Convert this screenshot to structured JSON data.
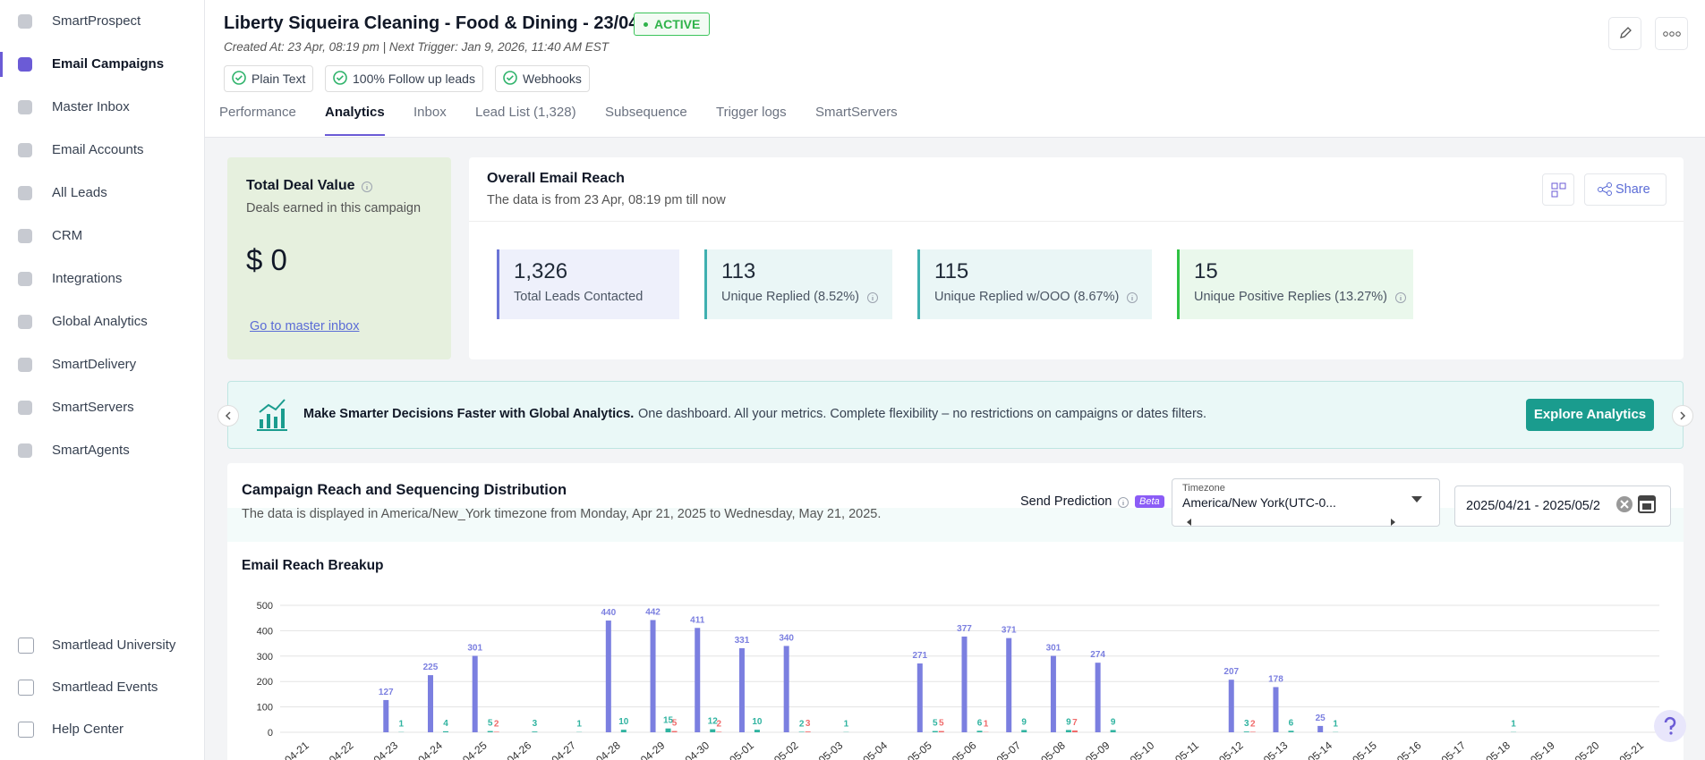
{
  "sidebar": {
    "items": [
      "SmartProspect",
      "Email Campaigns",
      "Master Inbox",
      "Email Accounts",
      "All Leads",
      "CRM",
      "Integrations",
      "Global Analytics",
      "SmartDelivery",
      "SmartServers",
      "SmartAgents"
    ],
    "active": 1,
    "bottom_items": [
      "Smartlead University",
      "Smartlead Events",
      "Help Center"
    ]
  },
  "header": {
    "title": "Liberty Siqueira Cleaning - Food & Dining - 23/04/...",
    "status": "ACTIVE",
    "meta": "Created At: 23 Apr, 08:19 pm | Next Trigger: Jan 9, 2026, 11:40 AM EST",
    "chips": [
      "Plain Text",
      "100% Follow up leads",
      "Webhooks"
    ],
    "tabs": [
      "Performance",
      "Analytics",
      "Inbox",
      "Lead List (1,328)",
      "Subsequence",
      "Trigger logs",
      "SmartServers"
    ],
    "active_tab": 1
  },
  "deal_card": {
    "title": "Total Deal Value",
    "subtitle": "Deals earned in this campaign",
    "value": "$ 0",
    "link": "Go to master inbox"
  },
  "reach_card": {
    "title": "Overall Email Reach",
    "subtitle": "The data is from 23 Apr, 08:19 pm till now",
    "share": "Share",
    "stats": [
      {
        "value": "1,326",
        "label": "Total Leads Contacted",
        "color": "#6b74d6",
        "bg": "#eef0fb"
      },
      {
        "value": "113",
        "label": "Unique Replied (8.52%)",
        "color": "#3fb0b0",
        "bg": "#eaf6f6"
      },
      {
        "value": "115",
        "label": "Unique Replied w/OOO (8.67%)",
        "color": "#3fb0b0",
        "bg": "#eaf6f6"
      },
      {
        "value": "15",
        "label": "Unique Positive Replies (13.27%)",
        "color": "#2fc244",
        "bg": "#eaf8ec"
      }
    ]
  },
  "banner": {
    "bold": "Make Smarter Decisions Faster with Global Analytics.",
    "text": "One dashboard. All your metrics. Complete flexibility – no restrictions on campaigns or dates filters.",
    "button": "Explore Analytics"
  },
  "distribution": {
    "title": "Campaign Reach and Sequencing Distribution",
    "subtitle": "The data is displayed in America/New_York timezone from Monday, Apr 21, 2025 to Wednesday, May 21, 2025.",
    "send_prediction": "Send Prediction",
    "beta": "Beta",
    "timezone_label": "Timezone",
    "timezone": "America/New York(UTC-0...",
    "date_range": "2025/04/21 - 2025/05/2"
  },
  "chart_data": {
    "type": "bar",
    "title": "Email Reach Breakup",
    "categories": [
      "04-21",
      "04-22",
      "04-23",
      "04-24",
      "04-25",
      "04-26",
      "04-27",
      "04-28",
      "04-29",
      "04-30",
      "05-01",
      "05-02",
      "05-03",
      "05-04",
      "05-05",
      "05-06",
      "05-07",
      "05-08",
      "05-09",
      "05-10",
      "05-11",
      "05-12",
      "05-13",
      "05-14",
      "05-15",
      "05-16",
      "05-17",
      "05-18",
      "05-19",
      "05-20",
      "05-21"
    ],
    "series": [
      {
        "color": "#7b7fe0",
        "values": [
          0,
          0,
          127,
          225,
          301,
          0,
          0,
          440,
          442,
          411,
          331,
          340,
          0,
          0,
          271,
          377,
          371,
          301,
          274,
          0,
          0,
          207,
          178,
          25,
          0,
          0,
          0,
          0,
          0,
          0,
          0
        ]
      },
      {
        "color": "#2fb3a0",
        "values": [
          0,
          0,
          1,
          4,
          5,
          3,
          1,
          10,
          15,
          12,
          10,
          2,
          1,
          0,
          5,
          6,
          9,
          9,
          9,
          0,
          0,
          3,
          6,
          1,
          0,
          0,
          0,
          1,
          0,
          0,
          0
        ]
      },
      {
        "color": "#f06a6a",
        "values": [
          0,
          0,
          0,
          0,
          2,
          0,
          0,
          0,
          5,
          2,
          0,
          3,
          0,
          0,
          5,
          1,
          0,
          7,
          0,
          0,
          0,
          2,
          0,
          0,
          0,
          0,
          0,
          0,
          0,
          0,
          0
        ]
      }
    ],
    "ylim": [
      0,
      500
    ],
    "yticks": [
      0,
      100,
      200,
      300,
      400,
      500
    ],
    "grid": true
  }
}
